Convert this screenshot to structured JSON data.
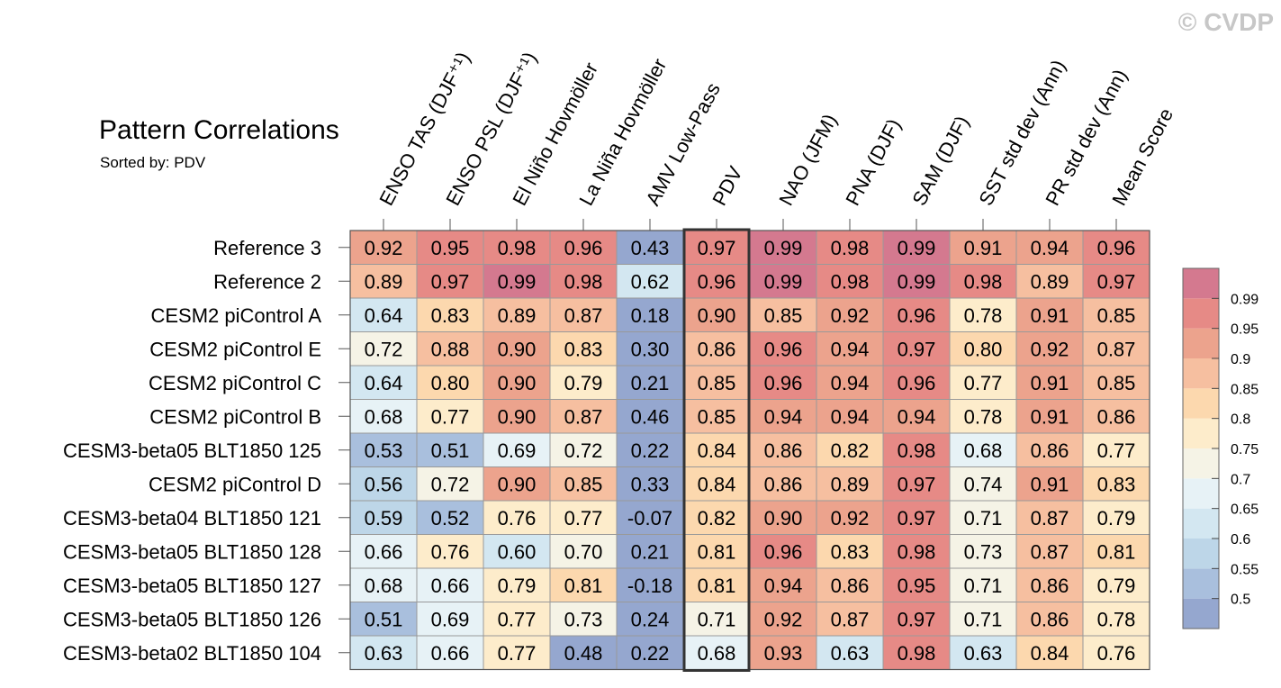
{
  "watermark": "© CVDP",
  "chart_data": {
    "type": "heatmap",
    "title": "Pattern Correlations",
    "subtitle": "Sorted by: PDV",
    "columns": [
      "ENSO TAS (DJF⁺¹)",
      "ENSO PSL (DJF⁺¹)",
      "El Niño Hovmöller",
      "La Niña Hovmöller",
      "AMV Low-Pass",
      "PDV",
      "NAO (JFM)",
      "PNA (DJF)",
      "SAM (DJF)",
      "SST std dev (Ann)",
      "PR std dev (Ann)",
      "Mean Score"
    ],
    "highlighted_column": "PDV",
    "rows": [
      "Reference 3",
      "Reference 2",
      "CESM2 piControl A",
      "CESM2 piControl E",
      "CESM2 piControl C",
      "CESM2 piControl B",
      "CESM3-beta05 BLT1850 125",
      "CESM2 piControl D",
      "CESM3-beta04 BLT1850 121",
      "CESM3-beta05 BLT1850 128",
      "CESM3-beta05 BLT1850 127",
      "CESM3-beta05 BLT1850 126",
      "CESM3-beta02 BLT1850 104"
    ],
    "values": [
      [
        "0.92",
        "0.95",
        "0.98",
        "0.96",
        "0.43",
        "0.97",
        "0.99",
        "0.98",
        "0.99",
        "0.91",
        "0.94",
        "0.96"
      ],
      [
        "0.89",
        "0.97",
        "0.99",
        "0.98",
        "0.62",
        "0.96",
        "0.99",
        "0.98",
        "0.99",
        "0.98",
        "0.89",
        "0.97"
      ],
      [
        "0.64",
        "0.83",
        "0.89",
        "0.87",
        "0.18",
        "0.90",
        "0.85",
        "0.92",
        "0.96",
        "0.78",
        "0.91",
        "0.85"
      ],
      [
        "0.72",
        "0.88",
        "0.90",
        "0.83",
        "0.30",
        "0.86",
        "0.96",
        "0.94",
        "0.97",
        "0.80",
        "0.92",
        "0.87"
      ],
      [
        "0.64",
        "0.80",
        "0.90",
        "0.79",
        "0.21",
        "0.85",
        "0.96",
        "0.94",
        "0.96",
        "0.77",
        "0.91",
        "0.85"
      ],
      [
        "0.68",
        "0.77",
        "0.90",
        "0.87",
        "0.46",
        "0.85",
        "0.94",
        "0.94",
        "0.94",
        "0.78",
        "0.91",
        "0.86"
      ],
      [
        "0.53",
        "0.51",
        "0.69",
        "0.72",
        "0.22",
        "0.84",
        "0.86",
        "0.82",
        "0.98",
        "0.68",
        "0.86",
        "0.77"
      ],
      [
        "0.56",
        "0.72",
        "0.90",
        "0.85",
        "0.33",
        "0.84",
        "0.86",
        "0.89",
        "0.97",
        "0.74",
        "0.91",
        "0.83"
      ],
      [
        "0.59",
        "0.52",
        "0.76",
        "0.77",
        "-0.07",
        "0.82",
        "0.90",
        "0.92",
        "0.97",
        "0.71",
        "0.87",
        "0.79"
      ],
      [
        "0.66",
        "0.76",
        "0.60",
        "0.70",
        "0.21",
        "0.81",
        "0.96",
        "0.83",
        "0.98",
        "0.73",
        "0.87",
        "0.81"
      ],
      [
        "0.68",
        "0.66",
        "0.79",
        "0.81",
        "-0.18",
        "0.81",
        "0.94",
        "0.86",
        "0.95",
        "0.71",
        "0.86",
        "0.79"
      ],
      [
        "0.51",
        "0.69",
        "0.77",
        "0.73",
        "0.24",
        "0.71",
        "0.92",
        "0.87",
        "0.97",
        "0.71",
        "0.86",
        "0.78"
      ],
      [
        "0.63",
        "0.66",
        "0.77",
        "0.48",
        "0.22",
        "0.68",
        "0.93",
        "0.63",
        "0.98",
        "0.63",
        "0.84",
        "0.76"
      ]
    ],
    "colorbar": {
      "labels": [
        "0.99",
        "0.95",
        "0.9",
        "0.85",
        "0.8",
        "0.75",
        "0.7",
        "0.65",
        "0.6",
        "0.55",
        "0.5"
      ],
      "thresholds": [
        0.5,
        0.55,
        0.6,
        0.65,
        0.7,
        0.75,
        0.8,
        0.85,
        0.9,
        0.95,
        0.99
      ],
      "colors": [
        "#95a7cf",
        "#a9bfdd",
        "#bdd6e8",
        "#d3e7f1",
        "#e7f2f6",
        "#f5f3e6",
        "#fdeccb",
        "#fcd8ae",
        "#f6bfa0",
        "#eca38d",
        "#e68a86",
        "#d4798f"
      ]
    }
  }
}
